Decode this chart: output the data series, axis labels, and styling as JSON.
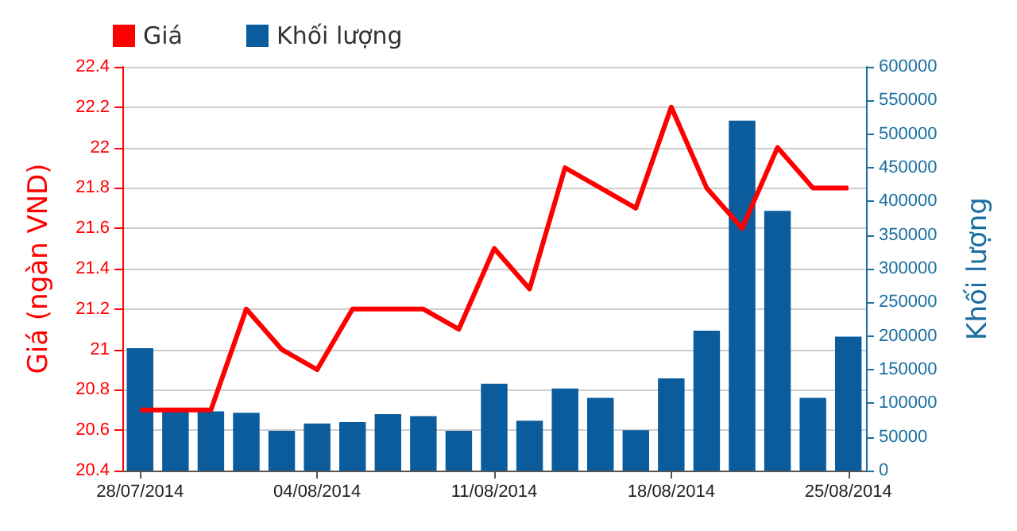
{
  "chart_data": {
    "type": "bar",
    "categories": [
      "28/07/2014",
      null,
      null,
      null,
      null,
      "04/08/2014",
      null,
      null,
      null,
      null,
      "11/08/2014",
      null,
      null,
      null,
      null,
      "18/08/2014",
      null,
      null,
      null,
      null,
      "25/08/2014"
    ],
    "series": [
      {
        "name": "Giá",
        "type": "line",
        "color": "#ff0000",
        "values": [
          20.7,
          20.7,
          20.7,
          21.2,
          21.0,
          20.9,
          21.2,
          21.2,
          21.2,
          21.1,
          21.5,
          21.3,
          21.9,
          21.8,
          21.7,
          22.2,
          21.8,
          21.6,
          22.0,
          21.8,
          21.8
        ]
      },
      {
        "name": "Khối lượng",
        "axis": "y2",
        "color": "#0a5c9c",
        "values": [
          182000,
          90000,
          88000,
          86000,
          59000,
          70000,
          72000,
          84000,
          81000,
          59000,
          129000,
          74000,
          122000,
          108000,
          60000,
          137000,
          208000,
          520000,
          386000,
          108000,
          199000
        ]
      }
    ],
    "ylabel": "Giá (ngàn VND)",
    "y2label": "Khối lượng",
    "ylim": [
      20.4,
      22.4
    ],
    "yticks": [
      20.4,
      20.6,
      20.8,
      21,
      21.2,
      21.4,
      21.6,
      21.8,
      22,
      22.2,
      22.4
    ],
    "y2lim": [
      0,
      600000
    ],
    "y2ticks": [
      0,
      50000,
      100000,
      150000,
      200000,
      250000,
      300000,
      350000,
      400000,
      450000,
      500000,
      550000,
      600000
    ],
    "grid": "y",
    "legend": "top left",
    "marker": "none",
    "line_style": "solid"
  }
}
